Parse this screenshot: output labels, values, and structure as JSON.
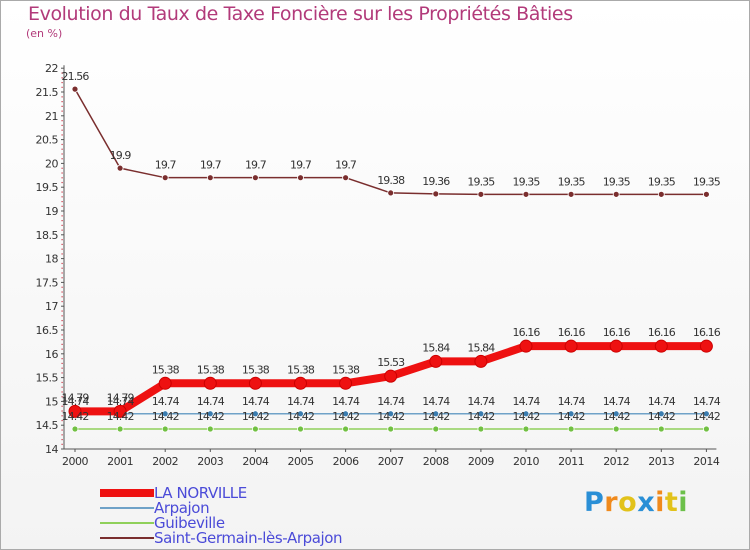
{
  "header": {
    "title": "Evolution du Taux de Taxe Foncière sur les Propriétés Bâties",
    "unit": "(en %)"
  },
  "chart_data": {
    "type": "line",
    "title": "Evolution du Taux de Taxe Foncière sur les Propriétés Bâties",
    "ylabel": "(en %)",
    "xlabel": "",
    "ylim": [
      14,
      22
    ],
    "yticks": [
      "14",
      "14.5",
      "15",
      "15.5",
      "16",
      "16.5",
      "17",
      "17.5",
      "18",
      "18.5",
      "19",
      "19.5",
      "20",
      "20.5",
      "21",
      "21.5",
      "22"
    ],
    "categories": [
      "2000",
      "2001",
      "2002",
      "2003",
      "2004",
      "2005",
      "2006",
      "2007",
      "2008",
      "2009",
      "2010",
      "2011",
      "2012",
      "2013",
      "2014"
    ],
    "grid": false,
    "series": [
      {
        "name": "LA NORVILLE",
        "color": "#ee1111",
        "marker": "#ee1111",
        "values": [
          14.79,
          14.79,
          15.38,
          15.38,
          15.38,
          15.38,
          15.38,
          15.53,
          15.84,
          15.84,
          16.16,
          16.16,
          16.16,
          16.16,
          16.16
        ],
        "labels": [
          "14.79",
          "14.79",
          "15.38",
          "15.38",
          "15.38",
          "15.38",
          "15.38",
          "15.53",
          "15.84",
          "15.84",
          "16.16",
          "16.16",
          "16.16",
          "16.16",
          "16.16"
        ]
      },
      {
        "name": "Arpajon",
        "color": "#6fa2c8",
        "marker": "#3b7db0",
        "values": [
          14.74,
          14.74,
          14.74,
          14.74,
          14.74,
          14.74,
          14.74,
          14.74,
          14.74,
          14.74,
          14.74,
          14.74,
          14.74,
          14.74,
          14.74
        ],
        "labels": [
          "14.74",
          "14.74",
          "14.74",
          "14.74",
          "14.74",
          "14.74",
          "14.74",
          "14.74",
          "14.74",
          "14.74",
          "14.74",
          "14.74",
          "14.74",
          "14.74",
          "14.74"
        ]
      },
      {
        "name": "Guibeville",
        "color": "#8fd05a",
        "marker": "#72c043",
        "values": [
          14.42,
          14.42,
          14.42,
          14.42,
          14.42,
          14.42,
          14.42,
          14.42,
          14.42,
          14.42,
          14.42,
          14.42,
          14.42,
          14.42,
          14.42
        ],
        "labels": [
          "14.42",
          "14.42",
          "14.42",
          "14.42",
          "14.42",
          "14.42",
          "14.42",
          "14.42",
          "14.42",
          "14.42",
          "14.42",
          "14.42",
          "14.42",
          "14.42",
          "14.42"
        ]
      },
      {
        "name": "Saint-Germain-lès-Arpajon",
        "color": "#7a2e2e",
        "marker": "#7a2e2e",
        "values": [
          21.56,
          19.9,
          19.7,
          19.7,
          19.7,
          19.7,
          19.7,
          19.38,
          19.36,
          19.35,
          19.35,
          19.35,
          19.35,
          19.35,
          19.35
        ],
        "labels": [
          "21.56",
          "19.9",
          "19.7",
          "19.7",
          "19.7",
          "19.7",
          "19.7",
          "19.38",
          "19.36",
          "19.35",
          "19.35",
          "19.35",
          "19.35",
          "19.35",
          "19.35"
        ]
      }
    ]
  },
  "logo": {
    "letters": [
      "P",
      "r",
      "o",
      "x",
      "i",
      "t",
      "i"
    ],
    "colors": [
      "#2a8fd6",
      "#f08a1c",
      "#e2c21a",
      "#2a8fd6",
      "#f08a1c",
      "#e2c21a",
      "#6cc04a"
    ]
  }
}
